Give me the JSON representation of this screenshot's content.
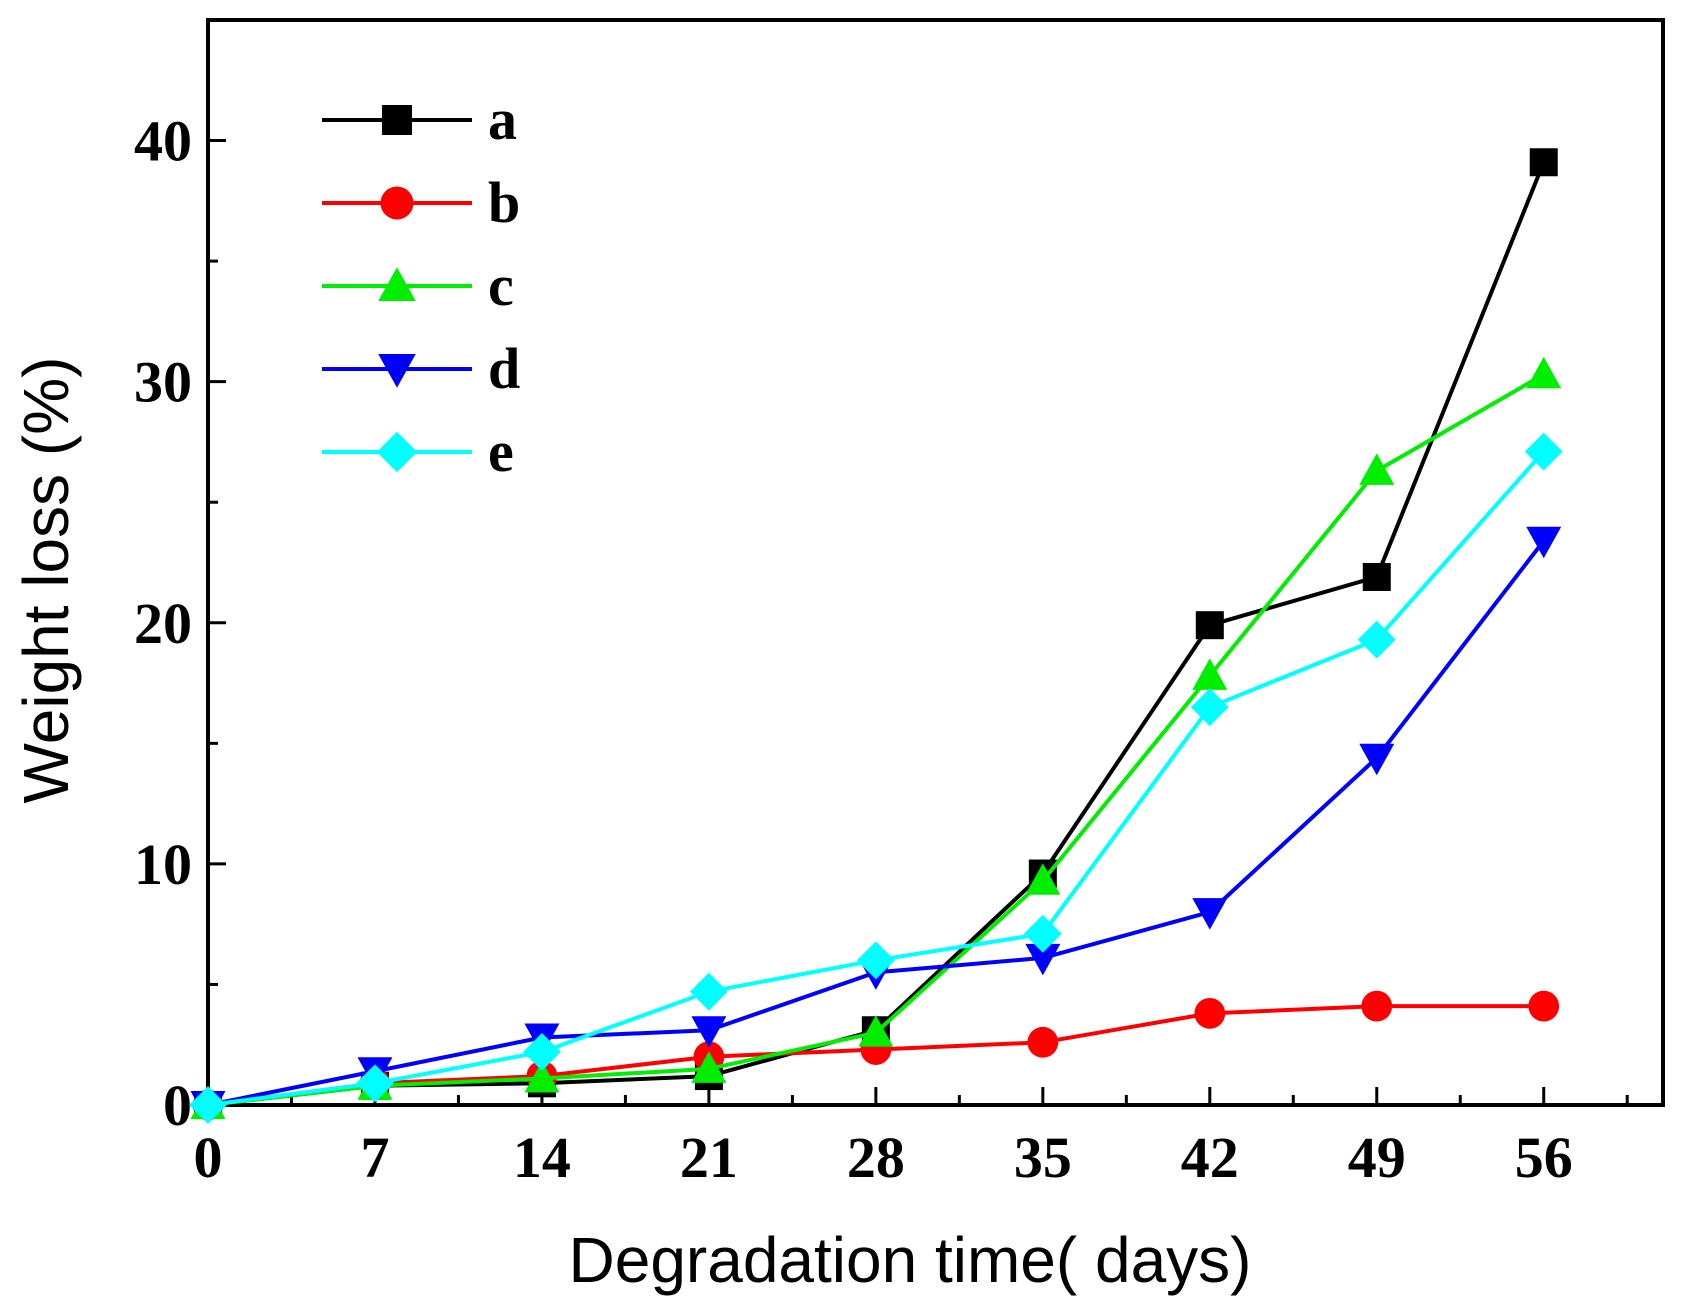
{
  "chart_data": {
    "type": "line",
    "title": "",
    "xlabel": "Degradation time(  days)",
    "ylabel": "Weight loss (%)",
    "xlim": [
      0,
      61
    ],
    "ylim": [
      0,
      45
    ],
    "x": [
      0,
      7,
      14,
      21,
      28,
      35,
      42,
      49,
      56
    ],
    "x_ticks": [
      0,
      7,
      14,
      21,
      28,
      35,
      42,
      49,
      56
    ],
    "x_tick_labels": [
      "0",
      "7",
      "14",
      "21",
      "28",
      "35",
      "42",
      "49",
      "56"
    ],
    "x_minor_ticks": [
      3.5,
      10.5,
      17.5,
      24.5,
      31.5,
      38.5,
      45.5,
      52.5,
      59.5
    ],
    "y_ticks": [
      0,
      10,
      20,
      30,
      40
    ],
    "y_tick_labels": [
      "0",
      "10",
      "20",
      "30",
      "40"
    ],
    "y_minor_ticks": [
      5,
      15,
      25,
      35
    ],
    "grid": false,
    "legend_position": "top-left",
    "series": [
      {
        "name": "a",
        "color": "#000000",
        "marker": "square",
        "values": [
          0,
          0.8,
          0.9,
          1.2,
          3.1,
          9.6,
          19.9,
          21.9,
          39.1
        ]
      },
      {
        "name": "b",
        "color": "#ff0000",
        "marker": "circle",
        "values": [
          0,
          0.9,
          1.2,
          2.0,
          2.3,
          2.6,
          3.8,
          4.1,
          4.1
        ]
      },
      {
        "name": "c",
        "color": "#00ee00",
        "marker": "triangle-up",
        "values": [
          0,
          0.8,
          1.1,
          1.5,
          3.0,
          9.3,
          17.8,
          26.3,
          30.3
        ]
      },
      {
        "name": "d",
        "color": "#0000ff",
        "marker": "triangle-down",
        "values": [
          0,
          1.4,
          2.8,
          3.1,
          5.5,
          6.1,
          8.0,
          14.4,
          23.4
        ]
      },
      {
        "name": "e",
        "color": "#00ffff",
        "marker": "diamond",
        "values": [
          0,
          0.9,
          2.2,
          4.7,
          6.0,
          7.1,
          16.5,
          19.3,
          27.1
        ]
      }
    ]
  }
}
